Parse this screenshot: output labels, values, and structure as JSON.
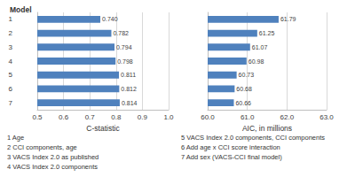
{
  "heading": "Model",
  "chart_data": [
    {
      "type": "bar",
      "orientation": "horizontal",
      "title": "C-statistic",
      "categories": [
        "1",
        "2",
        "3",
        "4",
        "5",
        "6",
        "7"
      ],
      "values": [
        0.74,
        0.782,
        0.794,
        0.798,
        0.811,
        0.812,
        0.814
      ],
      "value_labels": [
        "0.740",
        "0.782",
        "0.794",
        "0.798",
        "0.811",
        "0.812",
        "0.814"
      ],
      "color": "#4f81bd",
      "xlim": [
        0.5,
        1
      ],
      "xticks": [
        {
          "value": 0.5,
          "label": "0.5"
        },
        {
          "value": 0.6,
          "label": "0.6"
        },
        {
          "value": 0.7,
          "label": "0.7"
        },
        {
          "value": 0.8,
          "label": "0.8"
        },
        {
          "value": 0.9,
          "label": "0.9"
        },
        {
          "value": 1,
          "label": "1.0"
        }
      ],
      "grid": true,
      "data_labels": true
    },
    {
      "type": "bar",
      "orientation": "horizontal",
      "title": "AIC, in millions",
      "categories": [
        "1",
        "2",
        "3",
        "4",
        "5",
        "6",
        "7"
      ],
      "values": [
        61.79,
        61.25,
        61.07,
        60.98,
        60.73,
        60.68,
        60.66
      ],
      "color": "#4f81bd",
      "xlim": [
        60,
        63
      ],
      "xticks": [
        {
          "value": 60,
          "label": "60.0"
        },
        {
          "value": 61,
          "label": "61.0"
        },
        {
          "value": 62,
          "label": "62.0"
        },
        {
          "value": 63,
          "label": "63.0"
        }
      ],
      "grid": true,
      "data_labels": true,
      "tick_labels": "x"
    }
  ],
  "footnotes": [
    "1 Age",
    "2 CCI components, age",
    "3 VACS Index 2.0 as published",
    "4 VACS Index 2.0 components",
    "5 VACS Index 2.0 components, CCI components",
    "6 Add age x CCI score interaction",
    "7 Add sex (VACS-CCI final model)"
  ]
}
